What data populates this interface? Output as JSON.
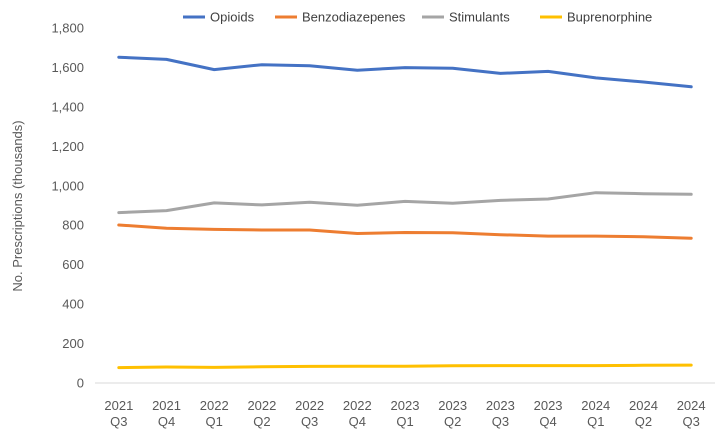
{
  "chart_data": {
    "type": "line",
    "categories": [
      [
        "2021",
        "Q3"
      ],
      [
        "2021",
        "Q4"
      ],
      [
        "2022",
        "Q1"
      ],
      [
        "2022",
        "Q2"
      ],
      [
        "2022",
        "Q3"
      ],
      [
        "2022",
        "Q4"
      ],
      [
        "2023",
        "Q1"
      ],
      [
        "2023",
        "Q2"
      ],
      [
        "2023",
        "Q3"
      ],
      [
        "2023",
        "Q4"
      ],
      [
        "2024",
        "Q1"
      ],
      [
        "2024",
        "Q2"
      ],
      [
        "2024",
        "Q3"
      ]
    ],
    "series": [
      {
        "name": "Opioids",
        "color": "#4472C4",
        "values": [
          1652,
          1641,
          1589,
          1614,
          1609,
          1586,
          1599,
          1596,
          1570,
          1580,
          1547,
          1526,
          1502
        ]
      },
      {
        "name": "Benzodiazepenes",
        "color": "#ED7D31",
        "values": [
          801,
          785,
          779,
          776,
          776,
          758,
          763,
          762,
          752,
          745,
          745,
          742,
          734
        ]
      },
      {
        "name": "Stimulants",
        "color": "#A5A5A5",
        "values": [
          864,
          874,
          913,
          903,
          916,
          901,
          921,
          911,
          926,
          933,
          965,
          960,
          957
        ]
      },
      {
        "name": "Buprenorphine",
        "color": "#FFC000",
        "values": [
          78,
          81,
          79,
          82,
          84,
          85,
          85,
          87,
          88,
          88,
          88,
          90,
          91
        ]
      }
    ],
    "title": "",
    "xlabel": "",
    "ylabel": "No. Prescriptions (thousands)",
    "ylim": [
      0,
      1800
    ],
    "yticks": [
      "0",
      "200",
      "400",
      "600",
      "800",
      "1,000",
      "1,200",
      "1,400",
      "1,600",
      "1,800"
    ],
    "grid": false,
    "legend_position": "top"
  }
}
